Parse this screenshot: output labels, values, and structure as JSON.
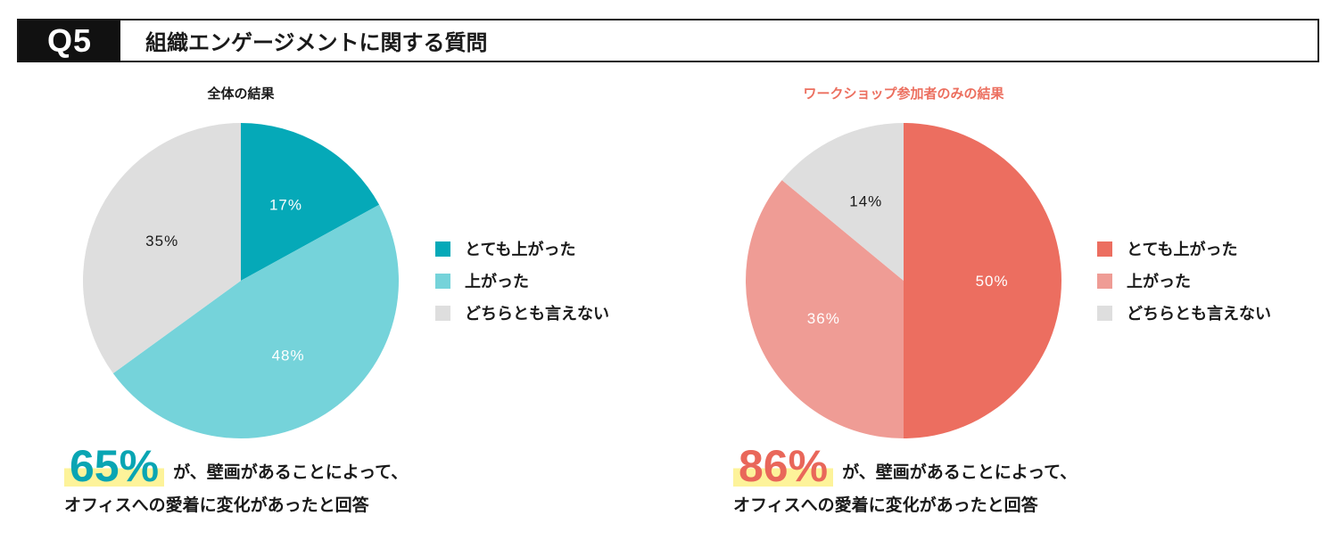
{
  "header": {
    "tag": "Q5",
    "title": "組織エンゲージメントに関する質問"
  },
  "chart_data": [
    {
      "type": "pie",
      "title": "全体の結果",
      "title_color": "#1a1a1a",
      "slices": [
        {
          "label": "とても上がった",
          "value": 17,
          "display": "17%",
          "color": "#05a9b8",
          "text_color": "#ffffff"
        },
        {
          "label": "上がった",
          "value": 48,
          "display": "48%",
          "color": "#75d3da",
          "text_color": "#ffffff"
        },
        {
          "label": "どちらとも言えない",
          "value": 35,
          "display": "35%",
          "color": "#dedede",
          "text_color": "#1a1a1a"
        }
      ],
      "legend_position": "right",
      "summary": {
        "percent": "65%",
        "percent_color": "#09a5b3",
        "suffix": "が、壁画があることによって、",
        "line2": "オフィスへの愛着に変化があったと回答"
      }
    },
    {
      "type": "pie",
      "title": "ワークショップ参加者のみの結果",
      "title_color": "#ec6f5f",
      "slices": [
        {
          "label": "とても上がった",
          "value": 50,
          "display": "50%",
          "color": "#ec6e60",
          "text_color": "#ffffff"
        },
        {
          "label": "上がった",
          "value": 36,
          "display": "36%",
          "color": "#ef9c95",
          "text_color": "#ffffff"
        },
        {
          "label": "どちらとも言えない",
          "value": 14,
          "display": "14%",
          "color": "#dedede",
          "text_color": "#1a1a1a"
        }
      ],
      "legend_position": "right",
      "summary": {
        "percent": "86%",
        "percent_color": "#e9675a",
        "suffix": "が、壁画があることによって、",
        "line2": "オフィスへの愛着に変化があったと回答"
      }
    }
  ]
}
